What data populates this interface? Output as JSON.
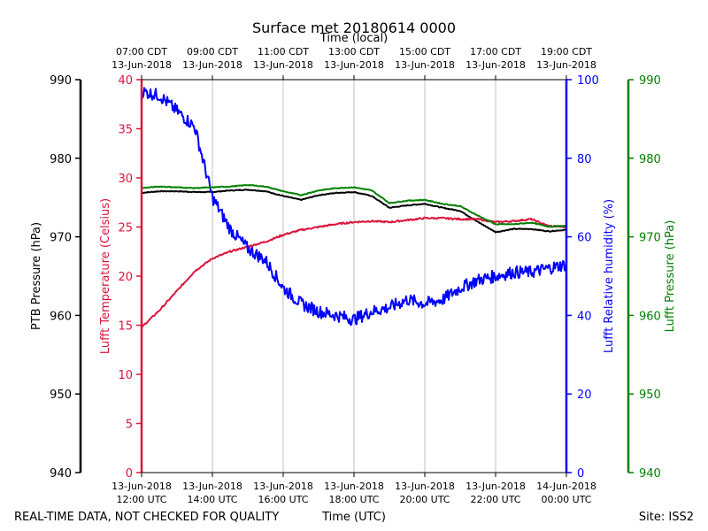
{
  "chart_data": {
    "type": "line",
    "title": "Surface met 20180614 0000",
    "top_axis_label": "Time (local)",
    "xlabel": "Time (UTC)",
    "footer_left": "REAL-TIME DATA, NOT CHECKED FOR QUALITY",
    "footer_right": "Site: ISS2",
    "x_range_hours_utc": [
      12,
      24
    ],
    "x_ticks": [
      {
        "h": 12,
        "date": "13-Jun-2018",
        "utc": "12:00 UTC",
        "local": "07:00 CDT",
        "local_date": "13-Jun-2018"
      },
      {
        "h": 14,
        "date": "13-Jun-2018",
        "utc": "14:00 UTC",
        "local": "09:00 CDT",
        "local_date": "13-Jun-2018"
      },
      {
        "h": 16,
        "date": "13-Jun-2018",
        "utc": "16:00 UTC",
        "local": "11:00 CDT",
        "local_date": "13-Jun-2018"
      },
      {
        "h": 18,
        "date": "13-Jun-2018",
        "utc": "18:00 UTC",
        "local": "13:00 CDT",
        "local_date": "13-Jun-2018"
      },
      {
        "h": 20,
        "date": "13-Jun-2018",
        "utc": "20:00 UTC",
        "local": "15:00 CDT",
        "local_date": "13-Jun-2018"
      },
      {
        "h": 22,
        "date": "13-Jun-2018",
        "utc": "22:00 UTC",
        "local": "17:00 CDT",
        "local_date": "13-Jun-2018"
      },
      {
        "h": 24,
        "date": "14-Jun-2018",
        "utc": "00:00 UTC",
        "local": "19:00 CDT",
        "local_date": "13-Jun-2018"
      }
    ],
    "axes": {
      "ptb_pressure": {
        "label": "PTB Pressure (hPa)",
        "color": "#000000",
        "ylim": [
          940,
          990
        ],
        "ticks": [
          940,
          950,
          960,
          970,
          980,
          990
        ]
      },
      "temperature": {
        "label": "Lufft Temperature (Celsius)",
        "color": "#dc143c",
        "ylim": [
          0,
          40
        ],
        "ticks": [
          0,
          5,
          10,
          15,
          20,
          25,
          30,
          35,
          40
        ]
      },
      "humidity": {
        "label": "Lufft Relative humidity (%)",
        "color": "#0000ff",
        "ylim": [
          0,
          100
        ],
        "ticks": [
          0,
          20,
          40,
          60,
          80,
          100
        ]
      },
      "lufft_pressure": {
        "label": "Lufft Pressure (hPa)",
        "color": "#008000",
        "ylim": [
          940,
          990
        ],
        "ticks": [
          940,
          950,
          960,
          970,
          980,
          990
        ]
      }
    },
    "series": [
      {
        "name": "PTB Pressure",
        "axis": "ptb_pressure",
        "color": "#000000",
        "x": [
          12.0,
          12.5,
          13.0,
          13.5,
          14.0,
          14.5,
          15.0,
          15.5,
          16.0,
          16.5,
          17.0,
          17.5,
          18.0,
          18.5,
          19.0,
          19.5,
          20.0,
          20.5,
          21.0,
          21.5,
          22.0,
          22.5,
          23.0,
          23.5,
          24.0
        ],
        "values": [
          975.6,
          975.8,
          975.8,
          975.7,
          975.7,
          975.9,
          976.0,
          975.8,
          975.2,
          974.7,
          975.3,
          975.6,
          975.7,
          975.2,
          973.7,
          974.0,
          974.2,
          973.7,
          973.3,
          971.9,
          970.6,
          971.0,
          971.0,
          970.7,
          970.9
        ]
      },
      {
        "name": "Lufft Temperature",
        "axis": "temperature",
        "color": "#dc143c",
        "x": [
          12.0,
          12.5,
          13.0,
          13.5,
          14.0,
          14.5,
          15.0,
          15.5,
          16.0,
          16.5,
          17.0,
          17.5,
          18.0,
          18.5,
          19.0,
          19.5,
          20.0,
          20.5,
          21.0,
          21.5,
          22.0,
          22.5,
          23.0,
          23.5,
          24.0
        ],
        "values": [
          14.8,
          16.5,
          18.5,
          20.5,
          21.8,
          22.5,
          23.0,
          23.5,
          24.2,
          24.7,
          25.0,
          25.3,
          25.5,
          25.6,
          25.5,
          25.7,
          25.9,
          25.9,
          25.8,
          25.8,
          25.5,
          25.6,
          25.8,
          25.1,
          25.0
        ]
      },
      {
        "name": "Lufft Relative humidity",
        "axis": "humidity",
        "color": "#0000ff",
        "x": [
          12.0,
          12.5,
          13.0,
          13.5,
          14.0,
          14.5,
          15.0,
          15.5,
          16.0,
          16.5,
          17.0,
          17.5,
          18.0,
          18.5,
          19.0,
          19.5,
          20.0,
          20.5,
          21.0,
          21.5,
          22.0,
          22.5,
          23.0,
          23.5,
          24.0
        ],
        "values": [
          97,
          96,
          92,
          88,
          70,
          62,
          57,
          54,
          47,
          43,
          41,
          40,
          39,
          41,
          42,
          44,
          43,
          44,
          47,
          49,
          50,
          51,
          51,
          52,
          53
        ]
      },
      {
        "name": "Lufft Pressure",
        "axis": "lufft_pressure",
        "color": "#008000",
        "x": [
          12.0,
          12.5,
          13.0,
          13.5,
          14.0,
          14.5,
          15.0,
          15.5,
          16.0,
          16.5,
          17.0,
          17.5,
          18.0,
          18.5,
          19.0,
          19.5,
          20.0,
          20.5,
          21.0,
          21.5,
          22.0,
          22.5,
          23.0,
          23.5,
          24.0
        ],
        "values": [
          976.2,
          976.4,
          976.3,
          976.2,
          976.3,
          976.4,
          976.6,
          976.4,
          975.8,
          975.3,
          975.9,
          976.2,
          976.3,
          975.9,
          974.3,
          974.6,
          974.7,
          974.2,
          973.9,
          972.7,
          971.6,
          971.6,
          971.8,
          971.3,
          971.4
        ]
      }
    ]
  }
}
